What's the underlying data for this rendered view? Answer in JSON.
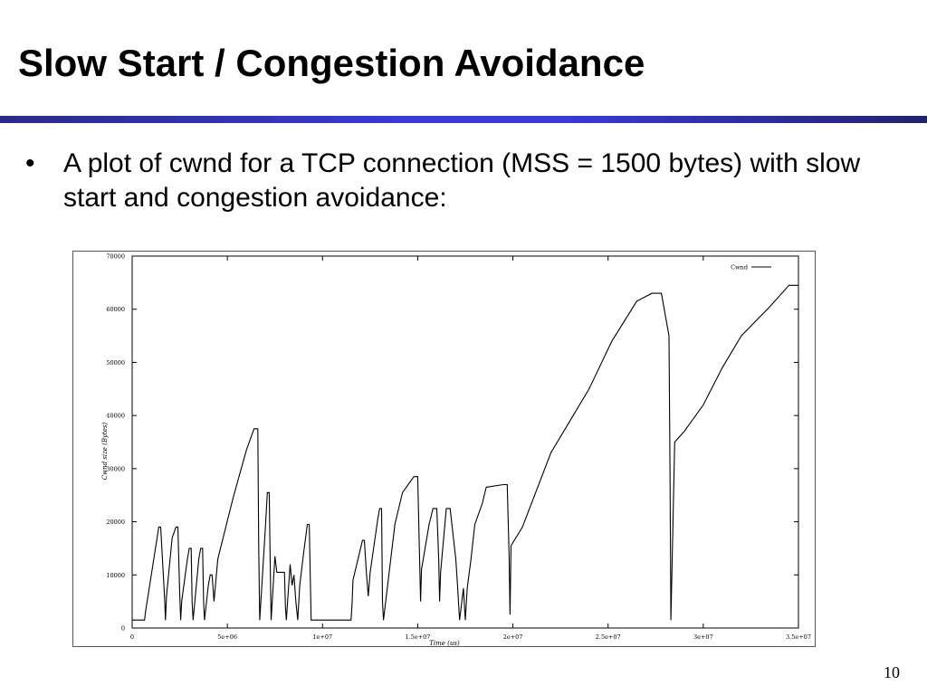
{
  "slide": {
    "title": "Slow Start / Congestion Avoidance",
    "bullet_symbol": "•",
    "bullet_text": "A plot of cwnd for a TCP connection (MSS = 1500 bytes) with slow start and congestion avoidance:",
    "page_number": "10",
    "rule_color": "#3a3ad8"
  },
  "chart_data": {
    "type": "line",
    "title": "",
    "xlabel": "Time (us)",
    "ylabel": "Cwnd size (Bytes)",
    "xlim": [
      0,
      35000000
    ],
    "ylim": [
      0,
      70000
    ],
    "xticks": [
      0,
      5000000,
      10000000,
      15000000,
      20000000,
      25000000,
      30000000,
      35000000
    ],
    "xtick_labels": [
      "0",
      "5e+06",
      "1e+07",
      "1.5e+07",
      "2e+07",
      "2.5e+07",
      "3e+07",
      "3.5e+07"
    ],
    "yticks": [
      0,
      10000,
      20000,
      30000,
      40000,
      50000,
      60000,
      70000
    ],
    "ytick_labels": [
      "0",
      "10000",
      "20000",
      "30000",
      "40000",
      "50000",
      "60000",
      "70000"
    ],
    "grid": false,
    "legend": "top-right",
    "series": [
      {
        "name": "Cwnd",
        "color": "#000000",
        "x": [
          0,
          650000,
          700000,
          1400000,
          1500000,
          1700000,
          1750000,
          1800000,
          2100000,
          2300000,
          2400000,
          2500000,
          2550000,
          2600000,
          2900000,
          3000000,
          3100000,
          3150000,
          3200000,
          3500000,
          3600000,
          3700000,
          3750000,
          3800000,
          4000000,
          4100000,
          4200000,
          4300000,
          4500000,
          5300000,
          6000000,
          6400000,
          6600000,
          6650000,
          6700000,
          7000000,
          7100000,
          7200000,
          7250000,
          7300000,
          7500000,
          7600000,
          8000000,
          8050000,
          8100000,
          8300000,
          8400000,
          8500000,
          8600000,
          8700000,
          8800000,
          9000000,
          9200000,
          9300000,
          9400000,
          10000000,
          10500000,
          11500000,
          11550000,
          11600000,
          12100000,
          12200000,
          12300000,
          12400000,
          12500000,
          12900000,
          13000000,
          13100000,
          13150000,
          13200000,
          13800000,
          14200000,
          14800000,
          15000000,
          15100000,
          15150000,
          15200000,
          15600000,
          15800000,
          16000000,
          16100000,
          16150000,
          16200000,
          16500000,
          16700000,
          17000000,
          17100000,
          17150000,
          17200000,
          17400000,
          17500000,
          17600000,
          17800000,
          18000000,
          18400000,
          18600000,
          19500000,
          19700000,
          19800000,
          19850000,
          19900000,
          20500000,
          22000000,
          24000000,
          25200000,
          26500000,
          27300000,
          27800000,
          28200000,
          28250000,
          28300000,
          28500000,
          29000000,
          30000000,
          31000000,
          32000000,
          33500000,
          34500000,
          34800000,
          35000000
        ],
        "y": [
          1500,
          1500,
          3000,
          19000,
          19000,
          6000,
          1500,
          6000,
          17000,
          19000,
          19000,
          6000,
          1500,
          5000,
          13000,
          15000,
          15000,
          5000,
          1500,
          13000,
          15000,
          15000,
          5000,
          1500,
          8000,
          10000,
          10000,
          5000,
          13000,
          24500,
          33500,
          37500,
          37500,
          15000,
          1500,
          19000,
          25500,
          25500,
          12000,
          1500,
          13500,
          10500,
          10500,
          4000,
          1500,
          12000,
          8000,
          10000,
          5000,
          1500,
          8000,
          14000,
          19500,
          19500,
          1500,
          1500,
          1500,
          1500,
          4500,
          9000,
          16500,
          16500,
          10500,
          6000,
          10500,
          20500,
          22500,
          22500,
          5000,
          1500,
          19500,
          25500,
          28500,
          28500,
          13000,
          5000,
          11000,
          19500,
          22500,
          22500,
          13000,
          5000,
          10500,
          22500,
          22500,
          13000,
          7500,
          4500,
          1500,
          7500,
          1500,
          7500,
          13000,
          19500,
          23500,
          26500,
          27000,
          27000,
          13500,
          2500,
          15500,
          19000,
          33000,
          45000,
          54000,
          61500,
          63000,
          63000,
          55000,
          30000,
          1500,
          35000,
          37000,
          42000,
          49000,
          55000,
          60500,
          64500,
          64500,
          64500
        ]
      }
    ]
  }
}
